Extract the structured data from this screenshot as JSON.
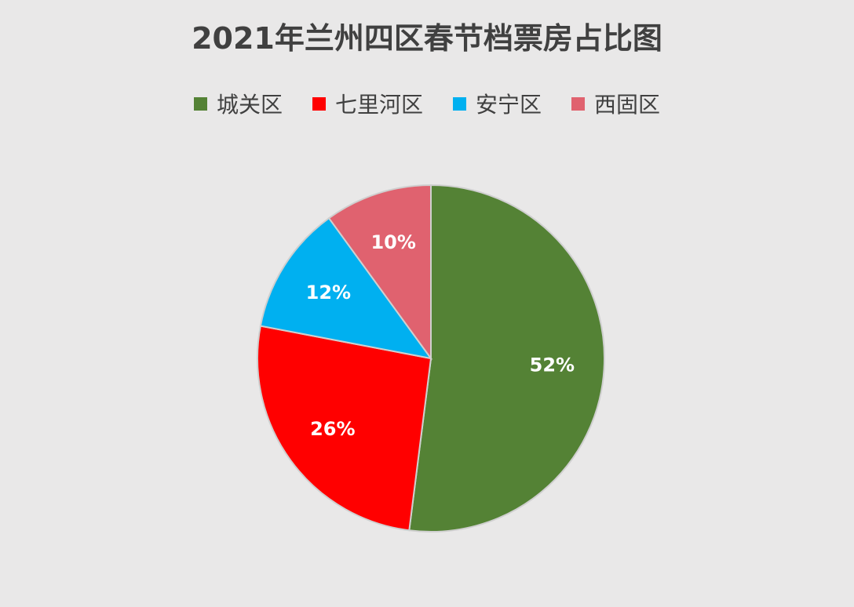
{
  "chart_data": {
    "type": "pie",
    "title": "2021年兰州四区春节档票房占比图",
    "categories": [
      "城关区",
      "七里河区",
      "安宁区",
      "西固区"
    ],
    "values": [
      52,
      26,
      12,
      10
    ],
    "value_labels": [
      "52%",
      "26%",
      "12%",
      "10%"
    ],
    "colors": [
      "#548235",
      "#ff0000",
      "#00b0f0",
      "#e0626f"
    ],
    "legend": "top"
  }
}
